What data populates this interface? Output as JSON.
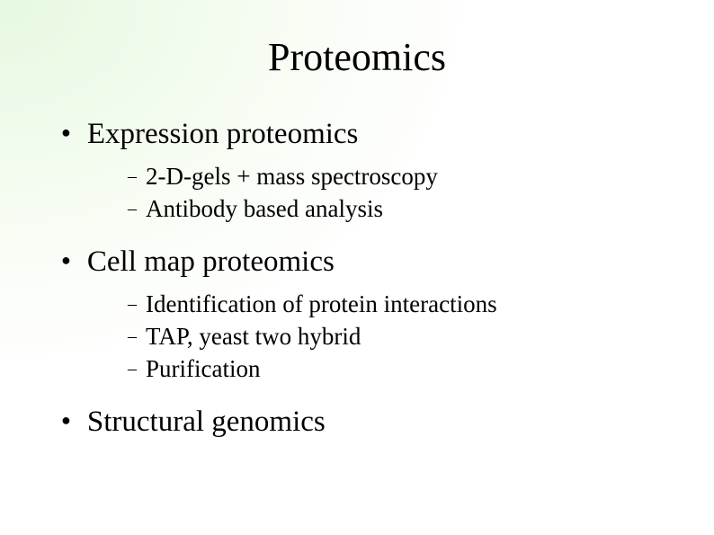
{
  "slide": {
    "title": "Proteomics",
    "bullets": [
      {
        "text": "Expression proteomics",
        "sub": [
          "2-D-gels + mass spectroscopy",
          "Antibody based analysis"
        ]
      },
      {
        "text": "Cell map proteomics",
        "sub": [
          "Identification of protein interactions",
          "TAP, yeast two hybrid",
          "Purification"
        ]
      },
      {
        "text": "Structural genomics",
        "sub": []
      }
    ]
  },
  "styling": {
    "background_gradient_inner": "#e6f8e0",
    "background_gradient_outer": "#ffffff",
    "text_color": "#000000",
    "title_fontsize": 44,
    "l1_fontsize": 33,
    "l2_fontsize": 27,
    "font_family": "Times New Roman",
    "bullet_char": "●",
    "dash_char": "–"
  }
}
